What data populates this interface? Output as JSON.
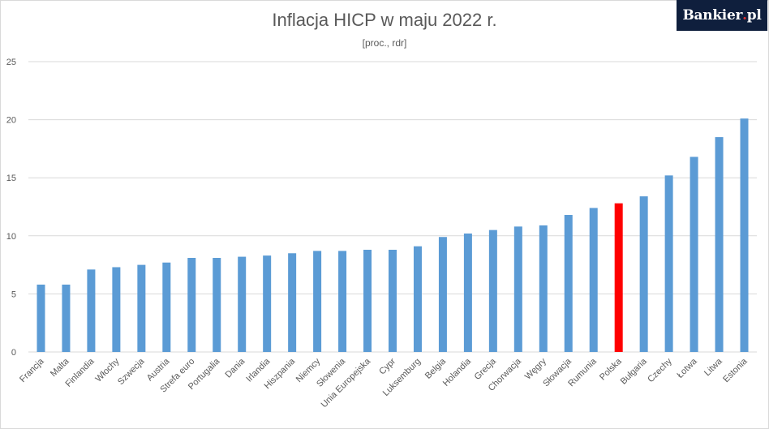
{
  "brand": {
    "logo_text": "Bankier",
    "logo_dot": ".",
    "logo_suffix": "pl"
  },
  "chart_data": {
    "type": "bar",
    "title": "Inflacja HICP w maju 2022 r.",
    "subtitle": "[proc., rdr]",
    "xlabel": "",
    "ylabel": "",
    "ylim": [
      0,
      25
    ],
    "yticks": [
      0,
      5,
      10,
      15,
      20,
      25
    ],
    "grid": true,
    "legend": "none",
    "categories": [
      "Francja",
      "Malta",
      "Finlandia",
      "Włochy",
      "Szwecja",
      "Austria",
      "Strefa euro",
      "Portugalia",
      "Dania",
      "Irlandia",
      "Hiszpania",
      "Niemcy",
      "Słowenia",
      "Unia Europejska",
      "Cypr",
      "Luksemburg",
      "Belgia",
      "Holandia",
      "Grecja",
      "Chorwacja",
      "Węgry",
      "Słowacja",
      "Rumunia",
      "Polska",
      "Bułgaria",
      "Czechy",
      "Łotwa",
      "Litwa",
      "Estonia"
    ],
    "values": [
      5.8,
      5.8,
      7.1,
      7.3,
      7.5,
      7.7,
      8.1,
      8.1,
      8.2,
      8.3,
      8.5,
      8.7,
      8.7,
      8.8,
      8.8,
      9.1,
      9.9,
      10.2,
      10.5,
      10.8,
      10.9,
      11.8,
      12.4,
      12.8,
      13.4,
      15.2,
      16.8,
      18.5,
      20.1
    ],
    "colors": {
      "default": "#5b9bd5",
      "highlight": "#ff0000",
      "grid": "#d9d9d9",
      "text": "#595959"
    },
    "highlight_category": "Polska"
  }
}
